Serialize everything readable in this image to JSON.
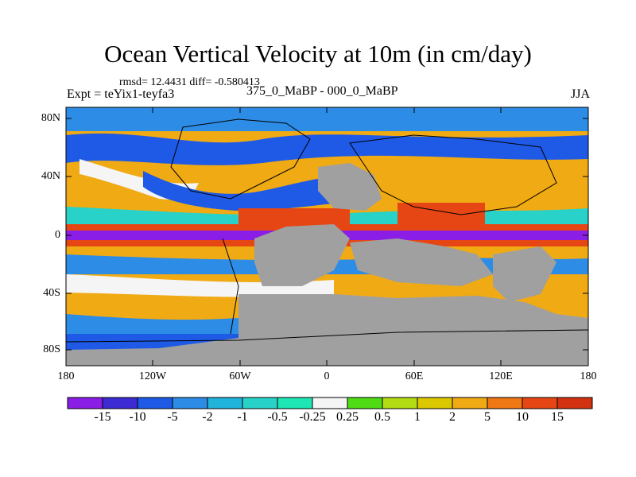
{
  "title": "Ocean Vertical Velocity at 10m (in cm/day)",
  "stats": "rmsd= 12.4431  diff= -0.580413",
  "expt_label": "Expt = teYix1-teyfa3",
  "subtitle": "375_0_MaBP - 000_0_MaBP",
  "season": "JJA",
  "y_ticks": [
    "80N",
    "40N",
    "0",
    "40S",
    "80S"
  ],
  "x_ticks": [
    "180",
    "120W",
    "60W",
    "0",
    "60E",
    "120E",
    "180"
  ],
  "colorbar": {
    "labels": [
      "-15",
      "-10",
      "-5",
      "-2",
      "-1",
      "-0.5",
      "-0.25",
      "0.25",
      "0.5",
      "1",
      "2",
      "5",
      "10",
      "15"
    ],
    "colors": [
      "#8a1ee6",
      "#3c2ad2",
      "#1e5ae6",
      "#2d8ce6",
      "#20b4dc",
      "#28d2c8",
      "#1ee6b4",
      "#f5f5f5",
      "#50dc14",
      "#b4dc14",
      "#dcc800",
      "#f0aa14",
      "#f07814",
      "#e64614",
      "#d2320f"
    ]
  },
  "legend_colors": {
    "land": "#a0a0a0",
    "coast": "#000000"
  }
}
